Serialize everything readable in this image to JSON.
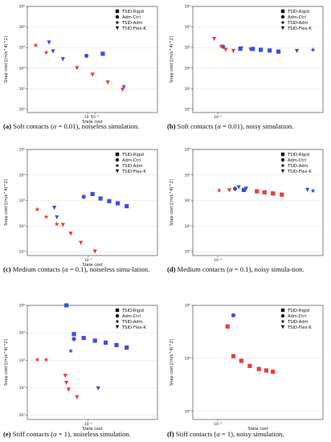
{
  "colors": {
    "blue": "#3d4fe0",
    "red": "#ee3b3b",
    "axis": "#333333",
    "grid": "#e3e3e3",
    "legend_marker": "#111111"
  },
  "legend": [
    "TSID-Rigid",
    "Adm-Ctrl",
    "TSID-Adm",
    "TSID-Flex-K"
  ],
  "legend_markers": [
    "square",
    "circle",
    "star",
    "triangle-down"
  ],
  "panels": [
    {
      "caption": {
        "label": "(a)",
        "text_before": " Soft contacts (",
        "alpha": "α",
        "text_after": " = 0.01), noiseless simulation."
      },
      "chart_data": {
        "type": "scatter",
        "xlabel": "State cost",
        "ylabel": "Snap cost [(m/s^4)^2]",
        "xscale": "log",
        "yscale": "log",
        "xlim": [
          0.0005,
          0.0022
        ],
        "ylim": [
          0.7,
          100000
        ],
        "x_ticks": [
          "10⁻³",
          "10⁻³"
        ],
        "y_ticks": [
          "10⁰",
          "10¹",
          "10²",
          "10³",
          "10⁴",
          "10⁵"
        ],
        "grid": true,
        "legend_position": "top-right",
        "series": [
          {
            "name": "TSID-Rigid",
            "marker": "square",
            "points": [
              {
                "x": 0.00118,
                "y": 500,
                "c": "blue"
              }
            ]
          },
          {
            "name": "Adm-Ctrl",
            "marker": "circle",
            "points": [
              {
                "x": 0.00098,
                "y": 400,
                "c": "blue"
              }
            ]
          },
          {
            "name": "TSID-Adm",
            "marker": "star",
            "points": [
              {
                "x": 0.00055,
                "y": 1300,
                "c": "red"
              },
              {
                "x": 0.00062,
                "y": 580,
                "c": "red"
              },
              {
                "x": 0.0015,
                "y": 13,
                "c": "blue"
              }
            ]
          },
          {
            "name": "TSID-Flex-K",
            "marker": "triangle-down",
            "points": [
              {
                "x": 0.00064,
                "y": 1750,
                "c": "blue"
              },
              {
                "x": 0.00067,
                "y": 650,
                "c": "blue"
              },
              {
                "x": 0.00075,
                "y": 270,
                "c": "blue"
              },
              {
                "x": 0.00088,
                "y": 100,
                "c": "red"
              },
              {
                "x": 0.00105,
                "y": 48,
                "c": "red"
              },
              {
                "x": 0.00125,
                "y": 20,
                "c": "red"
              },
              {
                "x": 0.00148,
                "y": 9,
                "c": "red"
              }
            ]
          }
        ]
      }
    },
    {
      "caption": {
        "label": "(b)",
        "text_before": " Soft contacts (",
        "alpha": "α",
        "text_after": " = 0.01), noisy simulation."
      },
      "chart_data": {
        "type": "scatter",
        "xlabel": "",
        "ylabel": "Snap cost [(m/s^4)^2]",
        "xscale": "log",
        "yscale": "log",
        "xlim": [
          0.0007,
          0.0045
        ],
        "ylim": [
          0.7,
          100000
        ],
        "x_ticks": [
          "10⁻³"
        ],
        "y_ticks": [
          "10⁰",
          "10¹",
          "10²",
          "10³",
          "10⁴",
          "10⁵"
        ],
        "grid": true,
        "legend_position": "top-right",
        "series": [
          {
            "name": "TSID-Rigid",
            "marker": "square",
            "points": [
              {
                "x": 0.00138,
                "y": 880,
                "c": "blue"
              },
              {
                "x": 0.00165,
                "y": 860,
                "c": "blue"
              },
              {
                "x": 0.00185,
                "y": 780,
                "c": "blue"
              },
              {
                "x": 0.0021,
                "y": 720,
                "c": "blue"
              },
              {
                "x": 0.00238,
                "y": 640,
                "c": "blue"
              }
            ]
          },
          {
            "name": "Adm-Ctrl",
            "marker": "circle",
            "points": [
              {
                "x": 0.00108,
                "y": 1100,
                "c": "blue"
              }
            ]
          },
          {
            "name": "TSID-Adm",
            "marker": "star",
            "points": [
              {
                "x": 0.00105,
                "y": 1200,
                "c": "red"
              },
              {
                "x": 0.0039,
                "y": 780,
                "c": "blue"
              }
            ]
          },
          {
            "name": "TSID-Flex-K",
            "marker": "triangle-down",
            "points": [
              {
                "x": 0.00095,
                "y": 2600,
                "c": "red"
              },
              {
                "x": 0.00112,
                "y": 780,
                "c": "red"
              },
              {
                "x": 0.00125,
                "y": 680,
                "c": "red"
              },
              {
                "x": 0.0014,
                "y": 900,
                "c": "blue"
              },
              {
                "x": 0.0016,
                "y": 800,
                "c": "blue"
              },
              {
                "x": 0.0031,
                "y": 680,
                "c": "blue"
              }
            ]
          }
        ]
      }
    },
    {
      "caption": {
        "label": "(c)",
        "text_before": " Medium contacts (",
        "alpha": "α",
        "text_after": " = 0.1), noiseless simu-lation."
      },
      "chart_data": {
        "type": "scatter",
        "xlabel": "State cost",
        "ylabel": "Snap cost [(m/s^4)^2]",
        "xscale": "log",
        "yscale": "log",
        "xlim": [
          0.0005,
          0.0022
        ],
        "ylim": [
          7,
          100000
        ],
        "x_ticks": [
          "10⁻³"
        ],
        "y_ticks": [
          "10¹",
          "10²",
          "10³",
          "10⁴",
          "10⁵"
        ],
        "grid": true,
        "legend_position": "top-right",
        "series": [
          {
            "name": "TSID-Rigid",
            "marker": "square",
            "points": [
              {
                "x": 0.00105,
                "y": 1800,
                "c": "blue"
              },
              {
                "x": 0.00115,
                "y": 1200,
                "c": "blue"
              },
              {
                "x": 0.00127,
                "y": 950,
                "c": "blue"
              },
              {
                "x": 0.0014,
                "y": 780,
                "c": "blue"
              },
              {
                "x": 0.00155,
                "y": 600,
                "c": "blue"
              }
            ]
          },
          {
            "name": "Adm-Ctrl",
            "marker": "circle",
            "points": [
              {
                "x": 0.00095,
                "y": 1400,
                "c": "blue"
              }
            ]
          },
          {
            "name": "TSID-Adm",
            "marker": "star",
            "points": [
              {
                "x": 0.00056,
                "y": 450,
                "c": "red"
              },
              {
                "x": 0.00062,
                "y": 230,
                "c": "red"
              },
              {
                "x": 0.0007,
                "y": 120,
                "c": "red"
              }
            ]
          },
          {
            "name": "TSID-Flex-K",
            "marker": "triangle-down",
            "points": [
              {
                "x": 0.00068,
                "y": 520,
                "c": "blue"
              },
              {
                "x": 0.0007,
                "y": 220,
                "c": "blue"
              },
              {
                "x": 0.00075,
                "y": 110,
                "c": "red"
              },
              {
                "x": 0.00082,
                "y": 50,
                "c": "red"
              },
              {
                "x": 0.00092,
                "y": 22,
                "c": "red"
              },
              {
                "x": 0.00108,
                "y": 10,
                "c": "red"
              }
            ]
          }
        ]
      }
    },
    {
      "caption": {
        "label": "(d)",
        "text_before": " Medium contacts (",
        "alpha": "α",
        "text_after": " = 0.1), noisy simula-tion."
      },
      "chart_data": {
        "type": "scatter",
        "xlabel": "",
        "ylabel": "Snap cost [(m/s^4)^2]",
        "xscale": "log",
        "yscale": "log",
        "xlim": [
          0.0007,
          0.0045
        ],
        "ylim": [
          7,
          100000
        ],
        "x_ticks": [
          "10⁻³"
        ],
        "y_ticks": [
          "10¹",
          "10²",
          "10³",
          "10⁴",
          "10⁵"
        ],
        "grid": true,
        "legend_position": "top-right",
        "series": [
          {
            "name": "TSID-Rigid",
            "marker": "square",
            "points": [
              {
                "x": 0.00145,
                "y": 2600,
                "c": "blue"
              },
              {
                "x": 0.00175,
                "y": 2300,
                "c": "red"
              },
              {
                "x": 0.00195,
                "y": 2100,
                "c": "red"
              },
              {
                "x": 0.0022,
                "y": 1900,
                "c": "red"
              },
              {
                "x": 0.0025,
                "y": 1700,
                "c": "red"
              }
            ]
          },
          {
            "name": "Adm-Ctrl",
            "marker": "circle",
            "points": [
              {
                "x": 0.00128,
                "y": 2900,
                "c": "blue"
              }
            ]
          },
          {
            "name": "TSID-Adm",
            "marker": "star",
            "points": [
              {
                "x": 0.00102,
                "y": 2500,
                "c": "red"
              },
              {
                "x": 0.0039,
                "y": 2400,
                "c": "blue"
              }
            ]
          },
          {
            "name": "TSID-Flex-K",
            "marker": "triangle-down",
            "points": [
              {
                "x": 0.00118,
                "y": 2500,
                "c": "red"
              },
              {
                "x": 0.00135,
                "y": 3300,
                "c": "blue"
              },
              {
                "x": 0.0015,
                "y": 2900,
                "c": "blue"
              },
              {
                "x": 0.0036,
                "y": 2600,
                "c": "blue"
              }
            ]
          }
        ]
      }
    },
    {
      "caption": {
        "label": "(e)",
        "text_before": " Stiff contacts (",
        "alpha": "α",
        "text_after": " = 1), noiseless simulation."
      },
      "chart_data": {
        "type": "scatter",
        "xlabel": "State cost",
        "ylabel": "Snap cost [(m/s^4)^2]",
        "xscale": "log",
        "yscale": "log",
        "xlim": [
          0.0005,
          0.0022
        ],
        "ylim": [
          7,
          100000
        ],
        "x_ticks": [
          "10⁻³"
        ],
        "y_ticks": [
          "10¹",
          "10²",
          "10³",
          "10⁴",
          "10⁵"
        ],
        "grid": true,
        "legend_position": "top-right",
        "series": [
          {
            "name": "TSID-Rigid",
            "marker": "square",
            "points": [
              {
                "x": 0.00078,
                "y": 100000,
                "c": "blue"
              },
              {
                "x": 0.00085,
                "y": 9000,
                "c": "blue"
              },
              {
                "x": 0.00095,
                "y": 6500,
                "c": "blue"
              },
              {
                "x": 0.00108,
                "y": 5200,
                "c": "blue"
              },
              {
                "x": 0.00122,
                "y": 4400,
                "c": "blue"
              },
              {
                "x": 0.00138,
                "y": 3600,
                "c": "blue"
              },
              {
                "x": 0.00155,
                "y": 2900,
                "c": "blue"
              }
            ]
          },
          {
            "name": "Adm-Ctrl",
            "marker": "circle",
            "points": [
              {
                "x": 0.00085,
                "y": 6000,
                "c": "blue"
              }
            ]
          },
          {
            "name": "TSID-Adm",
            "marker": "star",
            "points": [
              {
                "x": 0.00056,
                "y": 1050,
                "c": "red"
              },
              {
                "x": 0.00062,
                "y": 1050,
                "c": "red"
              },
              {
                "x": 0.00082,
                "y": 2200,
                "c": "blue"
              }
            ]
          },
          {
            "name": "TSID-Flex-K",
            "marker": "triangle-down",
            "points": [
              {
                "x": 0.00077,
                "y": 270,
                "c": "red"
              },
              {
                "x": 0.00078,
                "y": 150,
                "c": "red"
              },
              {
                "x": 0.0008,
                "y": 85,
                "c": "red"
              },
              {
                "x": 0.00088,
                "y": 45,
                "c": "red"
              },
              {
                "x": 0.00112,
                "y": 95,
                "c": "blue"
              }
            ]
          }
        ]
      }
    },
    {
      "caption": {
        "label": "(f)",
        "text_before": " Stiff contacts (",
        "alpha": "α",
        "text_after": " = 1), noisy simulation."
      },
      "chart_data": {
        "type": "scatter",
        "xlabel": "State cost",
        "ylabel": "Snap cost [(m/s^4)^2]",
        "xscale": "log",
        "yscale": "log",
        "xlim": [
          0.0007,
          0.0045
        ],
        "ylim": [
          700,
          100000
        ],
        "x_ticks": [
          "10⁻³"
        ],
        "y_ticks": [
          "10³",
          "10⁴",
          "10⁵"
        ],
        "grid": true,
        "legend_position": "top-right",
        "series": [
          {
            "name": "TSID-Rigid",
            "marker": "square",
            "points": [
              {
                "x": 0.00115,
                "y": 40000,
                "c": "red"
              },
              {
                "x": 0.00125,
                "y": 11000,
                "c": "red"
              },
              {
                "x": 0.0014,
                "y": 9000,
                "c": "red"
              },
              {
                "x": 0.00158,
                "y": 7200,
                "c": "red"
              },
              {
                "x": 0.0018,
                "y": 6300,
                "c": "red"
              },
              {
                "x": 0.002,
                "y": 5900,
                "c": "red"
              },
              {
                "x": 0.0022,
                "y": 5600,
                "c": "red"
              }
            ]
          },
          {
            "name": "Adm-Ctrl",
            "marker": "circle",
            "points": [
              {
                "x": 0.00125,
                "y": 65000,
                "c": "blue"
              }
            ]
          },
          {
            "name": "TSID-Adm",
            "marker": "star",
            "points": []
          },
          {
            "name": "TSID-Flex-K",
            "marker": "triangle-down",
            "points": []
          }
        ]
      }
    }
  ]
}
